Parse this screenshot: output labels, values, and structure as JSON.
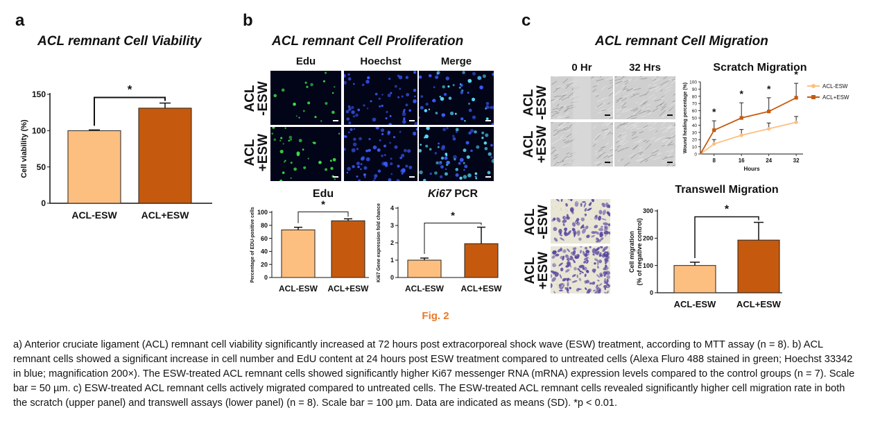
{
  "panels": {
    "a": {
      "letter": "a",
      "title": "ACL remnant Cell Viability"
    },
    "b": {
      "letter": "b",
      "title": "ACL remnant Cell Proliferation",
      "columns": [
        "Edu",
        "Hoechst",
        "Merge"
      ],
      "rows": [
        "ACL\n-ESW",
        "ACL\n+ESW"
      ]
    },
    "c": {
      "letter": "c",
      "title": "ACL remnant Cell Migration",
      "columns": [
        "0 Hr",
        "32 Hrs"
      ],
      "rows": [
        "ACL\n-ESW",
        "ACL\n+ESW"
      ],
      "transwell_rows": [
        "ACL\n-ESW",
        "ACL\n+ESW"
      ]
    }
  },
  "colors": {
    "acl_minus": "#fdbf80",
    "acl_plus": "#c55a0e",
    "fig_label": "#e8792b",
    "edu_green": "#3de24a",
    "hoechst_blue": "#3b5bff",
    "merge_cyan": "#58e3ff",
    "transwell_purple": "#5a4aa0"
  },
  "chart_data": [
    {
      "id": "viability",
      "type": "bar",
      "title": "",
      "ylabel": "Cell viability (%)",
      "categories": [
        "ACL-ESW",
        "ACL+ESW"
      ],
      "values": [
        100,
        131
      ],
      "errors": [
        1,
        7
      ],
      "ylim": [
        0,
        150
      ],
      "yticks": [
        0,
        50,
        100,
        150
      ],
      "significance": "*"
    },
    {
      "id": "edu",
      "type": "bar",
      "title": "Edu",
      "ylabel": "Percentage of EDU-positive cells",
      "categories": [
        "ACL-ESW",
        "ACL+ESW"
      ],
      "values": [
        73,
        87
      ],
      "errors": [
        4,
        3
      ],
      "ylim": [
        0,
        100
      ],
      "yticks": [
        0,
        20,
        40,
        60,
        80,
        100
      ],
      "significance": "*"
    },
    {
      "id": "ki67",
      "type": "bar",
      "title_italic": "Ki67",
      "title_rest": " PCR",
      "ylabel": "Ki67 Gene expression fold chance",
      "categories": [
        "ACL-ESW",
        "ACL+ESW"
      ],
      "values": [
        1.0,
        1.95
      ],
      "errors": [
        0.12,
        0.95
      ],
      "ylim": [
        0,
        4
      ],
      "yticks": [
        0,
        1,
        2,
        3,
        4
      ],
      "significance": "*"
    },
    {
      "id": "scratch",
      "type": "line",
      "title": "Scratch Migration",
      "xlabel": "Hours",
      "ylabel": "Wound healing percentage (%)",
      "x": [
        8,
        16,
        24,
        32
      ],
      "ylim": [
        0,
        100
      ],
      "yticks": [
        0,
        10,
        20,
        30,
        40,
        50,
        60,
        70,
        80,
        90,
        100
      ],
      "series": [
        {
          "name": "ACL-ESW",
          "values": [
            14,
            26,
            35,
            44
          ],
          "errors": [
            6,
            8,
            8,
            8
          ]
        },
        {
          "name": "ACL+ESW",
          "values": [
            33,
            50,
            59,
            78
          ],
          "errors": [
            13,
            21,
            19,
            20
          ]
        }
      ],
      "significance": [
        "*",
        "*",
        "*",
        "*"
      ],
      "legend": "right"
    },
    {
      "id": "transwell",
      "type": "bar",
      "title": "Transwell Migration",
      "ylabel": "Cell migration",
      "ylabel2": "(% of negative control)",
      "categories": [
        "ACL-ESW",
        "ACL+ESW"
      ],
      "values": [
        100,
        193
      ],
      "errors": [
        12,
        65
      ],
      "ylim": [
        0,
        300
      ],
      "yticks": [
        0,
        100,
        200,
        300
      ],
      "significance": "*"
    }
  ],
  "figure": {
    "label": "Fig. 2",
    "caption": "a) Anterior cruciate ligament (ACL) remnant cell viability significantly increased at 72 hours post extracorporeal shock wave (ESW) treatment, according to MTT assay (n = 8). b) ACL remnant cells showed a significant increase in cell number and EdU content at 24 hours post ESW treatment compared to untreated cells (Alexa Fluro 488 stained in green; Hoechst 33342 in blue; magnification 200×). The ESW-treated ACL remnant cells showed significantly higher Ki67 messenger RNA (mRNA) expression levels compared to the control groups (n = 7). Scale bar = 50 µm. c) ESW-treated ACL remnant cells actively migrated compared to untreated cells. The ESW-treated ACL remnant cells revealed significantly higher cell migration rate in both the scratch (upper panel) and transwell assays (lower panel) (n = 8). Scale bar = 100 µm. Data are indicated as means (SD). *p < 0.01."
  }
}
